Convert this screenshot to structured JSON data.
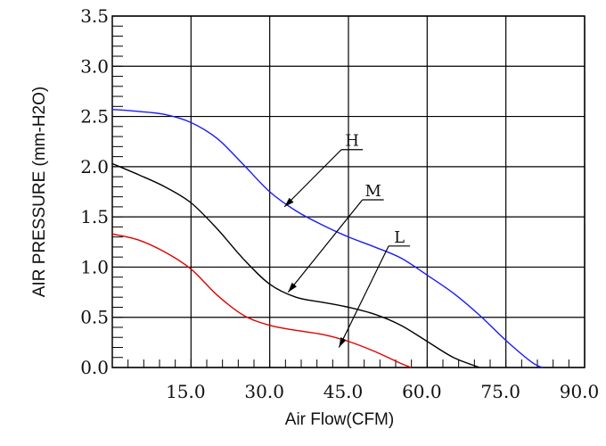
{
  "chart_data": {
    "type": "line",
    "xlabel": "Air Flow(CFM)",
    "ylabel": "AIR PRESSURE (mm-H2O)",
    "xlim": [
      0,
      90
    ],
    "ylim": [
      0,
      3.5
    ],
    "x_ticks": [
      15,
      30,
      45,
      60,
      75,
      90
    ],
    "x_tick_labels": [
      "15.0",
      "30.0",
      "45.0",
      "60.0",
      "75.0",
      "90.0"
    ],
    "y_ticks": [
      0,
      0.5,
      1.0,
      1.5,
      2.0,
      2.5,
      3.0,
      3.5
    ],
    "y_tick_labels": [
      "0.0",
      "0.5",
      "1.0",
      "1.5",
      "2.0",
      "2.5",
      "3.0",
      "3.5"
    ],
    "grid": true,
    "series": [
      {
        "name": "H",
        "color": "#1a1aff",
        "points": [
          [
            0,
            2.57
          ],
          [
            5,
            2.55
          ],
          [
            10,
            2.52
          ],
          [
            15,
            2.44
          ],
          [
            20,
            2.28
          ],
          [
            25,
            2.02
          ],
          [
            30,
            1.75
          ],
          [
            35,
            1.56
          ],
          [
            40,
            1.42
          ],
          [
            45,
            1.3
          ],
          [
            50,
            1.2
          ],
          [
            55,
            1.09
          ],
          [
            60,
            0.92
          ],
          [
            65,
            0.74
          ],
          [
            70,
            0.52
          ],
          [
            75,
            0.27
          ],
          [
            80,
            0.05
          ],
          [
            82,
            0.0
          ]
        ]
      },
      {
        "name": "M",
        "color": "#000000",
        "points": [
          [
            0,
            2.03
          ],
          [
            5,
            1.92
          ],
          [
            10,
            1.8
          ],
          [
            15,
            1.64
          ],
          [
            20,
            1.38
          ],
          [
            25,
            1.08
          ],
          [
            30,
            0.83
          ],
          [
            35,
            0.7
          ],
          [
            40,
            0.65
          ],
          [
            45,
            0.6
          ],
          [
            50,
            0.53
          ],
          [
            55,
            0.42
          ],
          [
            60,
            0.26
          ],
          [
            65,
            0.1
          ],
          [
            70,
            0.0
          ]
        ]
      },
      {
        "name": "L",
        "color": "#e00000",
        "points": [
          [
            0,
            1.33
          ],
          [
            5,
            1.27
          ],
          [
            10,
            1.15
          ],
          [
            15,
            0.98
          ],
          [
            20,
            0.72
          ],
          [
            25,
            0.52
          ],
          [
            30,
            0.42
          ],
          [
            35,
            0.37
          ],
          [
            40,
            0.33
          ],
          [
            45,
            0.26
          ],
          [
            50,
            0.16
          ],
          [
            55,
            0.04
          ],
          [
            57,
            0.0
          ]
        ]
      }
    ],
    "annotations": [
      {
        "label": "H",
        "line_x": 44,
        "line_y": 2.17,
        "arrow_x": 32.8,
        "arrow_y": 1.6
      },
      {
        "label": "M",
        "line_x": 48,
        "line_y": 1.67,
        "arrow_x": 33.5,
        "arrow_y": 0.75
      },
      {
        "label": "L",
        "line_x": 53,
        "line_y": 1.21,
        "arrow_x": 43.2,
        "arrow_y": 0.2
      }
    ]
  }
}
